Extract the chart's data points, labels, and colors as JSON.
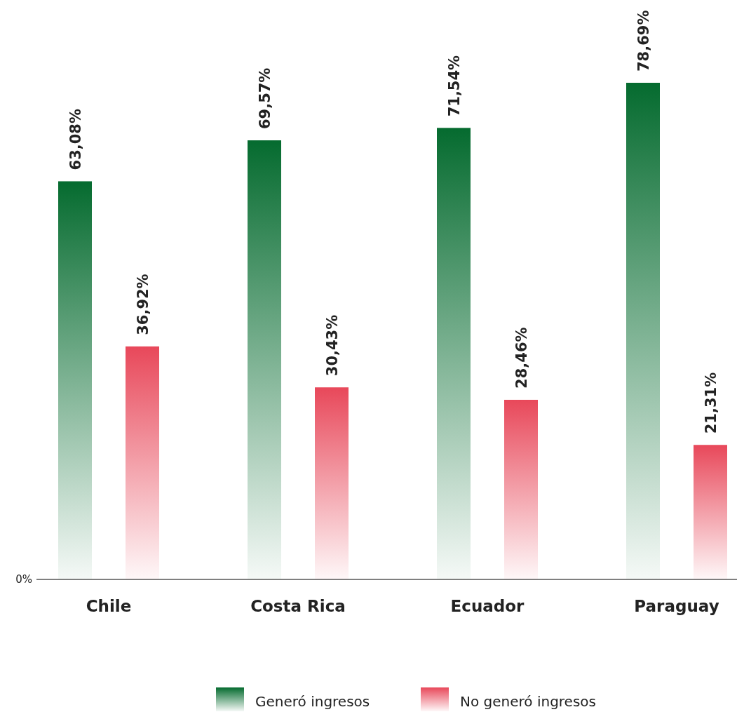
{
  "chart_data": {
    "type": "bar",
    "categories": [
      "Chile",
      "Costa Rica",
      "Ecuador",
      "Paraguay"
    ],
    "series": [
      {
        "name": "Generó ingresos",
        "color": "#056b2f",
        "values": [
          63.08,
          69.57,
          71.54,
          78.69
        ],
        "value_labels": [
          "63,08%",
          "69,57%",
          "71,54%",
          "78,69%"
        ]
      },
      {
        "name": "No generó ingresos",
        "color": "#e8485a",
        "values": [
          36.92,
          30.43,
          28.46,
          21.31
        ],
        "value_labels": [
          "36,92%",
          "30,43%",
          "28,46%",
          "21,31%"
        ]
      }
    ],
    "annotations": [
      "0%"
    ],
    "legend": "bottom"
  }
}
